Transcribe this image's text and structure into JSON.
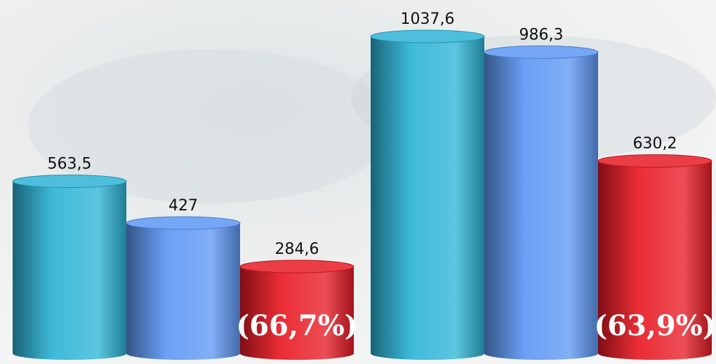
{
  "chart_data": {
    "type": "bar",
    "categories": [
      null,
      null
    ],
    "series": [
      {
        "color": "#2db4d6",
        "values": [
          563.5,
          1037.6
        ],
        "value_labels": [
          "563,5",
          "1037,6"
        ]
      },
      {
        "color": "#5e98f4",
        "values": [
          427,
          986.3
        ],
        "value_labels": [
          "427",
          "986,3"
        ]
      },
      {
        "color": "#e81b25",
        "values": [
          284.6,
          630.2
        ],
        "value_labels": [
          "284,6",
          "630,2"
        ]
      }
    ],
    "annotations": [
      "(66,7%)",
      "(63,9%)"
    ]
  }
}
